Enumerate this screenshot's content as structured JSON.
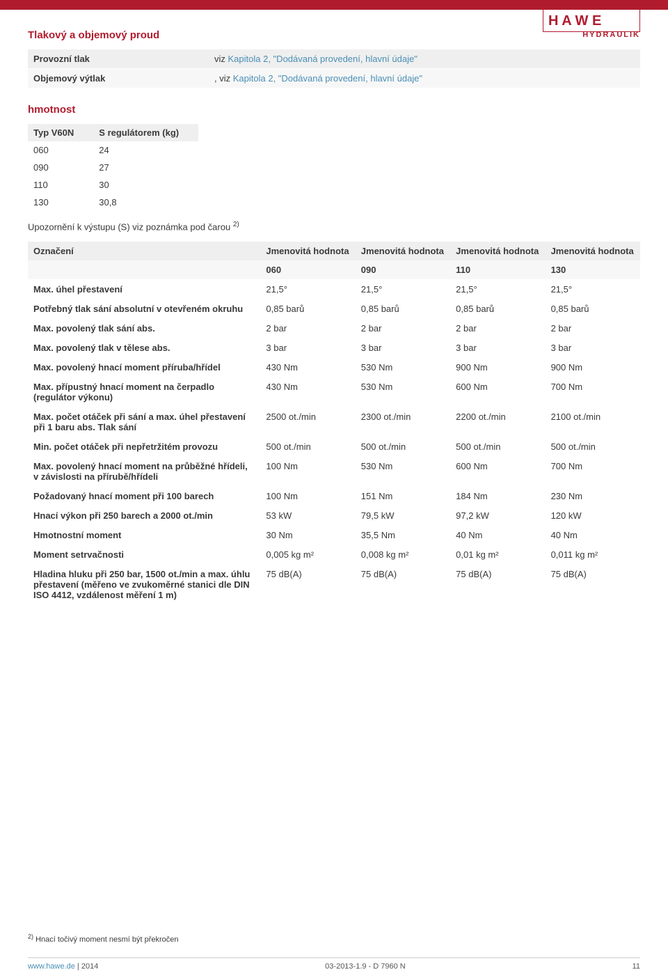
{
  "logo": {
    "subtext": "HYDRAULIK"
  },
  "colors": {
    "accent": "#b01c2e",
    "link": "#4a8fb5",
    "grey": "#efefef",
    "light": "#f7f7f7",
    "text": "#3a3a3a"
  },
  "typography": {
    "family": "Arial",
    "base_size": 13,
    "heading_size": 15
  },
  "sections": {
    "flow": {
      "title": "Tlakový a objemový proud",
      "rows": [
        {
          "label": "Provozní tlak",
          "prefix": "viz",
          "link": "Kapitola 2, \"Dodávaná provedení, hlavní údaje\""
        },
        {
          "label": "Objemový výtlak",
          "prefix": ", viz",
          "link": "Kapitola 2, \"Dodávaná provedení, hlavní údaje\""
        }
      ]
    },
    "weight": {
      "title": "hmotnost",
      "headers": [
        "Typ V60N",
        "S regulátorem (kg)"
      ],
      "rows": [
        [
          "060",
          "24"
        ],
        [
          "090",
          "27"
        ],
        [
          "110",
          "30"
        ],
        [
          "130",
          "30,8"
        ]
      ]
    },
    "note": {
      "text": "Upozornění k výstupu (S) viz poznámka pod čarou",
      "sup": "2)"
    },
    "data": {
      "header1": [
        "Označení",
        "Jmenovitá hodnota",
        "Jmenovitá hodnota",
        "Jmenovitá hodnota",
        "Jmenovitá hodnota"
      ],
      "header2": [
        "060",
        "090",
        "110",
        "130"
      ],
      "rows": [
        {
          "label": "Max. úhel přestavení",
          "vals": [
            "21,5°",
            "21,5°",
            "21,5°",
            "21,5°"
          ]
        },
        {
          "label": "Potřebný tlak sání absolutní v otevřeném okruhu",
          "vals": [
            "0,85 barů",
            "0,85 barů",
            "0,85 barů",
            "0,85 barů"
          ]
        },
        {
          "label": "Max. povolený tlak sání abs.",
          "vals": [
            "2 bar",
            "2 bar",
            "2 bar",
            "2 bar"
          ]
        },
        {
          "label": "Max. povolený tlak v tělese abs.",
          "vals": [
            "3 bar",
            "3 bar",
            "3 bar",
            "3 bar"
          ]
        },
        {
          "label": "Max. povolený hnací moment příruba/hřídel",
          "vals": [
            "430 Nm",
            "530 Nm",
            "900 Nm",
            "900 Nm"
          ]
        },
        {
          "label": "Max. přípustný hnací moment na čerpadlo (regulátor výkonu)",
          "vals": [
            "430 Nm",
            "530 Nm",
            "600 Nm",
            "700 Nm"
          ]
        },
        {
          "label": "Max. počet otáček při sání a max. úhel přestavení při 1 baru abs. Tlak sání",
          "vals": [
            "2500 ot./min",
            "2300 ot./min",
            "2200 ot./min",
            "2100 ot./min"
          ]
        },
        {
          "label": "Min. počet otáček při nepřetržitém provozu",
          "vals": [
            "500 ot./min",
            "500 ot./min",
            "500 ot./min",
            "500 ot./min"
          ]
        },
        {
          "label": "Max. povolený hnací moment na průběžné hřídeli, v závislosti na přírubě/hřídeli",
          "vals": [
            "100 Nm",
            "530 Nm",
            "600 Nm",
            "700 Nm"
          ]
        },
        {
          "label": "Požadovaný hnací moment při 100 barech",
          "vals": [
            "100 Nm",
            "151 Nm",
            "184 Nm",
            "230 Nm"
          ]
        },
        {
          "label": "Hnací výkon při 250 barech a 2000 ot./min",
          "vals": [
            "53 kW",
            "79,5 kW",
            "97,2 kW",
            "120 kW"
          ]
        },
        {
          "label": "Hmotnostní moment",
          "vals": [
            "30 Nm",
            "35,5 Nm",
            "40 Nm",
            "40 Nm"
          ]
        },
        {
          "label": "Moment setrvačnosti",
          "vals": [
            "0,005 kg m²",
            "0,008 kg m²",
            "0,01 kg m²",
            "0,011 kg m²"
          ]
        },
        {
          "label": "Hladina hluku při 250 bar, 1500 ot./min a max. úhlu přestavení (měřeno ve zvukoměrné stanici dle DIN ISO 4412, vzdálenost měření 1 m)",
          "vals": [
            "75 dB(A)",
            "75 dB(A)",
            "75 dB(A)",
            "75 dB(A)"
          ]
        }
      ]
    }
  },
  "footnote": {
    "num": "2)",
    "text": "Hnací točivý moment nesmí být překročen"
  },
  "footer": {
    "url": "www.hawe.de",
    "year": "2014",
    "center": "03-2013-1.9 - D 7960 N",
    "page": "11"
  }
}
